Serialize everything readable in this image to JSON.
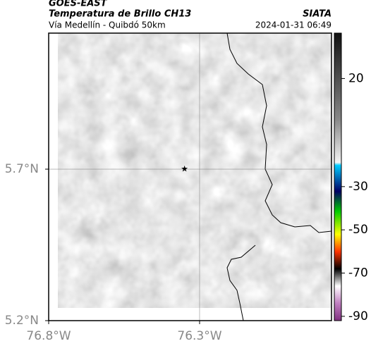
{
  "header": {
    "source": "GOES-EAST",
    "title": "Temperatura de Brillo CH13",
    "location": "Vía Medellín - Quibdó 50km",
    "agency": "SIATA",
    "datetime": "2024-01-31 06:49"
  },
  "map": {
    "lonlim": [
      -76.8,
      -75.863
    ],
    "latlim": [
      5.2,
      6.149
    ],
    "xticks": [
      {
        "value": -76.8,
        "label": "76.8°W"
      },
      {
        "value": -76.3,
        "label": "76.3°W"
      }
    ],
    "yticks": [
      {
        "value": 5.2,
        "label": "5.2°N"
      },
      {
        "value": 5.7,
        "label": "5.7°N"
      }
    ],
    "marker": {
      "lon": -76.35,
      "lat": 5.7
    }
  },
  "colorbar": {
    "lim": [
      -92,
      41
    ],
    "ticks": [
      20,
      -30,
      -50,
      -70,
      -90
    ]
  }
}
